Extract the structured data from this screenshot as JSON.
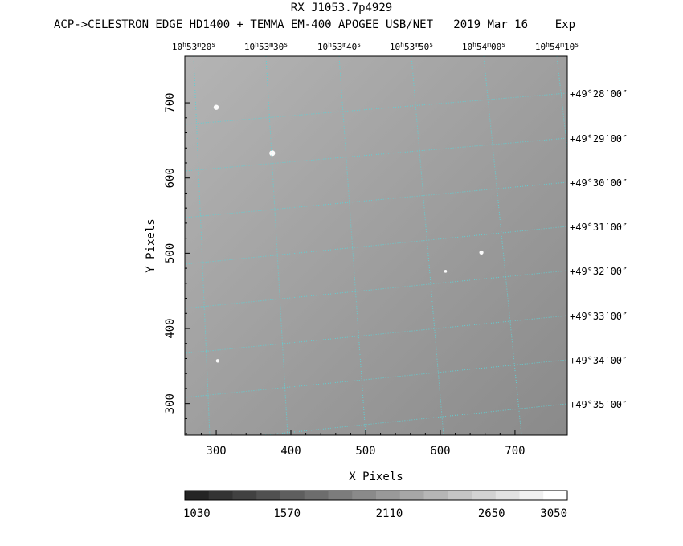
{
  "chart_data": {
    "type": "heatmap",
    "title": "RX_J1053.7p4929",
    "subtitle": "ACP->CELESTRON EDGE HD1400 + TEMMA EM-400 APOGEE USB/NET   2019 Mar 16    Exp",
    "xlabel": "X Pixels",
    "ylabel": "Y Pixels",
    "xlim": [
      258,
      770
    ],
    "ylim": [
      258,
      762
    ],
    "x_ticks": [
      300,
      400,
      500,
      600,
      700
    ],
    "y_ticks": [
      300,
      400,
      500,
      600,
      700
    ],
    "ra_ticks": [
      {
        "h": "10",
        "m": "53",
        "s": "20"
      },
      {
        "h": "10",
        "m": "53",
        "s": "30"
      },
      {
        "h": "10",
        "m": "53",
        "s": "40"
      },
      {
        "h": "10",
        "m": "53",
        "s": "50"
      },
      {
        "h": "10",
        "m": "54",
        "s": "00"
      },
      {
        "h": "10",
        "m": "54",
        "s": "10"
      }
    ],
    "dec_ticks": [
      "+49°28′00″",
      "+49°29′00″",
      "+49°30′00″",
      "+49°31′00″",
      "+49°32′00″",
      "+49°33′00″",
      "+49°34′00″",
      "+49°35′00″"
    ],
    "stars": [
      {
        "x": 300,
        "y": 694,
        "size": 3.2
      },
      {
        "x": 375,
        "y": 633,
        "size": 3.6
      },
      {
        "x": 655,
        "y": 501,
        "size": 2.6
      },
      {
        "x": 607,
        "y": 476,
        "size": 1.8
      },
      {
        "x": 302,
        "y": 357,
        "size": 2.2
      }
    ],
    "colorbar": {
      "min": 1030,
      "max": 3050,
      "labels": [
        "1030",
        "1570",
        "2110",
        "2650",
        "3050"
      ],
      "steps": 16
    },
    "grid": true,
    "colors": {
      "grid": "#5fd0d4",
      "image_light": "#b4b4b4",
      "image_dark": "#8a8a8a"
    }
  }
}
